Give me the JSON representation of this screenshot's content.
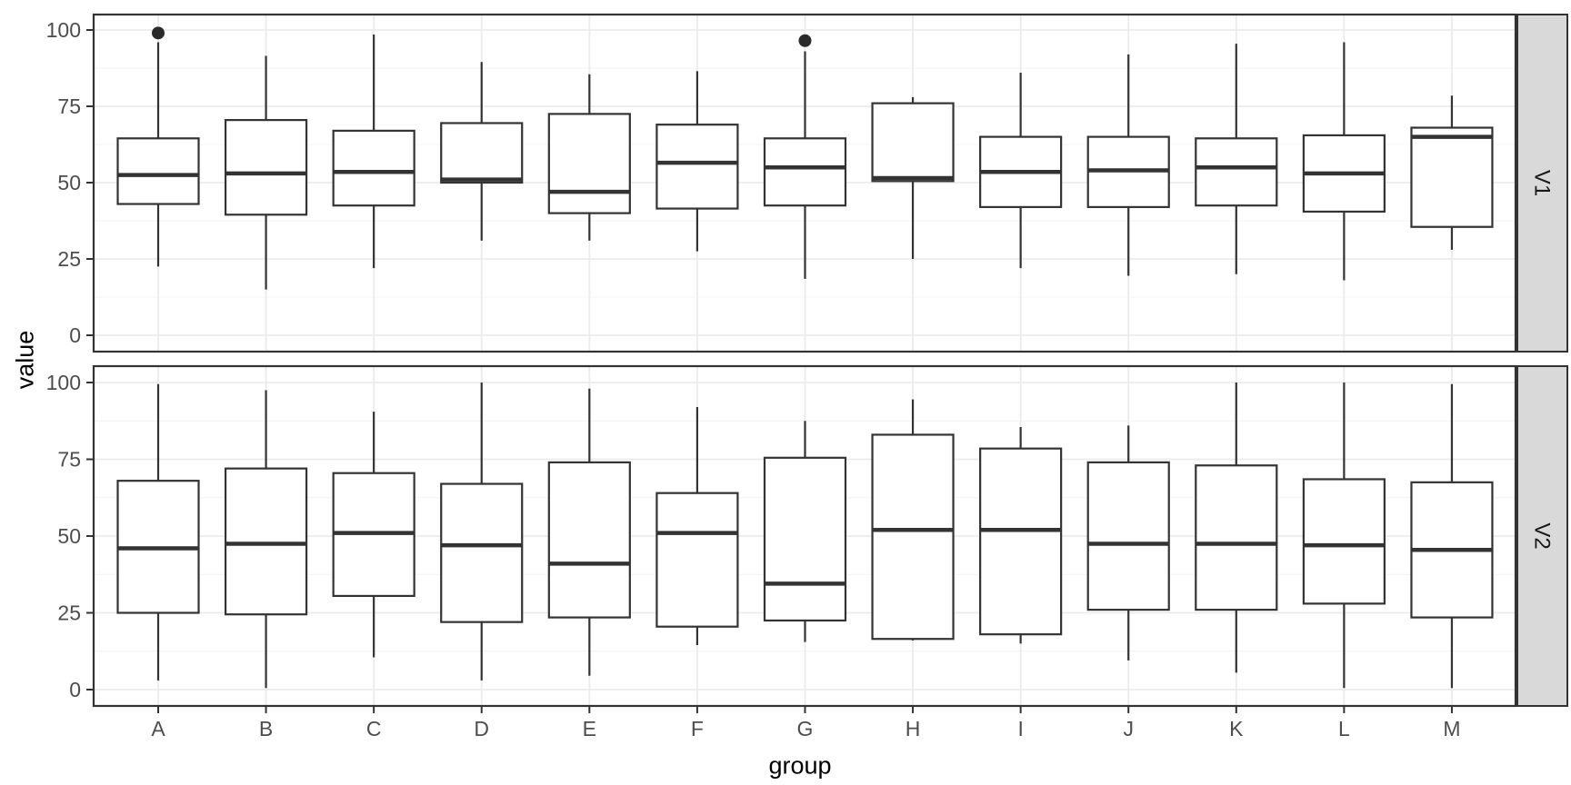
{
  "chart_data": {
    "type": "boxplot",
    "xlabel": "group",
    "ylabel": "value",
    "categories": [
      "A",
      "B",
      "C",
      "D",
      "E",
      "F",
      "G",
      "H",
      "I",
      "J",
      "K",
      "L",
      "M"
    ],
    "ylim": [
      0,
      100
    ],
    "y_ticks": [
      0,
      25,
      50,
      75,
      100
    ],
    "y_minor_ticks": [
      12.5,
      37.5,
      62.5,
      87.5
    ],
    "legend": "none",
    "grid": "on",
    "facet_strip_position": "right",
    "facets": [
      {
        "label": "V1",
        "boxes": [
          {
            "group": "A",
            "whisker_low": 22.5,
            "q1": 43,
            "median": 52.5,
            "q3": 64.5,
            "whisker_high": 96,
            "outliers": [
              99
            ]
          },
          {
            "group": "B",
            "whisker_low": 15,
            "q1": 39.5,
            "median": 53,
            "q3": 70.5,
            "whisker_high": 91.5,
            "outliers": []
          },
          {
            "group": "C",
            "whisker_low": 22,
            "q1": 42.5,
            "median": 53.5,
            "q3": 67,
            "whisker_high": 98.5,
            "outliers": []
          },
          {
            "group": "D",
            "whisker_low": 31,
            "q1": 50,
            "median": 51,
            "q3": 69.5,
            "whisker_high": 89.5,
            "outliers": []
          },
          {
            "group": "E",
            "whisker_low": 31,
            "q1": 40,
            "median": 47,
            "q3": 72.5,
            "whisker_high": 85.5,
            "outliers": []
          },
          {
            "group": "F",
            "whisker_low": 27.5,
            "q1": 41.5,
            "median": 56.5,
            "q3": 69,
            "whisker_high": 86.5,
            "outliers": []
          },
          {
            "group": "G",
            "whisker_low": 18.5,
            "q1": 42.5,
            "median": 55,
            "q3": 64.5,
            "whisker_high": 93,
            "outliers": [
              96.5
            ]
          },
          {
            "group": "H",
            "whisker_low": 25,
            "q1": 50.5,
            "median": 51.5,
            "q3": 76,
            "whisker_high": 78,
            "outliers": []
          },
          {
            "group": "I",
            "whisker_low": 22,
            "q1": 42,
            "median": 53.5,
            "q3": 65,
            "whisker_high": 86,
            "outliers": []
          },
          {
            "group": "J",
            "whisker_low": 19.5,
            "q1": 42,
            "median": 54,
            "q3": 65,
            "whisker_high": 92,
            "outliers": []
          },
          {
            "group": "K",
            "whisker_low": 20,
            "q1": 42.5,
            "median": 55,
            "q3": 64.5,
            "whisker_high": 95.5,
            "outliers": []
          },
          {
            "group": "L",
            "whisker_low": 18,
            "q1": 40.5,
            "median": 53,
            "q3": 65.5,
            "whisker_high": 96,
            "outliers": []
          },
          {
            "group": "M",
            "whisker_low": 28,
            "q1": 35.5,
            "median": 65,
            "q3": 68,
            "whisker_high": 78.5,
            "outliers": []
          }
        ]
      },
      {
        "label": "V2",
        "boxes": [
          {
            "group": "A",
            "whisker_low": 3,
            "q1": 25,
            "median": 46,
            "q3": 68,
            "whisker_high": 99.5,
            "outliers": []
          },
          {
            "group": "B",
            "whisker_low": 0.5,
            "q1": 24.5,
            "median": 47.5,
            "q3": 72,
            "whisker_high": 97.5,
            "outliers": []
          },
          {
            "group": "C",
            "whisker_low": 10.5,
            "q1": 30.5,
            "median": 51,
            "q3": 70.5,
            "whisker_high": 90.5,
            "outliers": []
          },
          {
            "group": "D",
            "whisker_low": 3,
            "q1": 22,
            "median": 47,
            "q3": 67,
            "whisker_high": 100,
            "outliers": []
          },
          {
            "group": "E",
            "whisker_low": 4.5,
            "q1": 23.5,
            "median": 41,
            "q3": 74,
            "whisker_high": 98,
            "outliers": []
          },
          {
            "group": "F",
            "whisker_low": 14.5,
            "q1": 20.5,
            "median": 51,
            "q3": 64,
            "whisker_high": 92,
            "outliers": []
          },
          {
            "group": "G",
            "whisker_low": 15.5,
            "q1": 22.5,
            "median": 34.5,
            "q3": 75.5,
            "whisker_high": 87.5,
            "outliers": []
          },
          {
            "group": "H",
            "whisker_low": 16,
            "q1": 16.5,
            "median": 52,
            "q3": 83,
            "whisker_high": 94.5,
            "outliers": []
          },
          {
            "group": "I",
            "whisker_low": 15,
            "q1": 18,
            "median": 52,
            "q3": 78.5,
            "whisker_high": 85.5,
            "outliers": []
          },
          {
            "group": "J",
            "whisker_low": 9.5,
            "q1": 26,
            "median": 47.5,
            "q3": 74,
            "whisker_high": 86,
            "outliers": []
          },
          {
            "group": "K",
            "whisker_low": 5.5,
            "q1": 26,
            "median": 47.5,
            "q3": 73,
            "whisker_high": 100,
            "outliers": []
          },
          {
            "group": "L",
            "whisker_low": 0.5,
            "q1": 28,
            "median": 47,
            "q3": 68.5,
            "whisker_high": 100,
            "outliers": []
          },
          {
            "group": "M",
            "whisker_low": 0.5,
            "q1": 23.5,
            "median": 45.5,
            "q3": 67.5,
            "whisker_high": 99.5,
            "outliers": []
          }
        ]
      }
    ]
  },
  "colors": {
    "panel_bg": "#FFFFFF",
    "panel_border": "#333333",
    "grid_major": "#EBEBEB",
    "grid_minor": "#F4F4F4",
    "box_stroke": "#333333",
    "box_fill": "#FFFFFF",
    "outlier": "#2B2B2B",
    "tick_label": "#4D4D4D",
    "axis_title": "#000000",
    "strip_bg": "#D9D9D9",
    "strip_text": "#1A1A1A"
  }
}
